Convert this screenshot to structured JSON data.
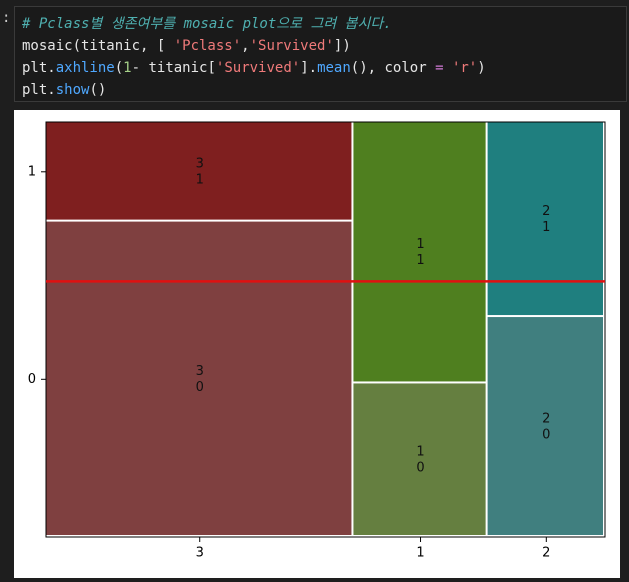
{
  "cell": {
    "prompt": ":",
    "code": [
      [
        {
          "text": "# Pclass별 생존여부를 mosaic plot으로 그려 봅시다.",
          "color": "#4fb0b0",
          "italic": true
        }
      ],
      [
        {
          "text": "mosaic(titanic, [ ",
          "color": "#e6e6e6"
        },
        {
          "text": "'Pclass'",
          "color": "#f07a7a"
        },
        {
          "text": ",",
          "color": "#e6e6e6"
        },
        {
          "text": "'Survived'",
          "color": "#f07a7a"
        },
        {
          "text": "])",
          "color": "#e6e6e6"
        }
      ],
      [
        {
          "text": "plt.",
          "color": "#e6e6e6"
        },
        {
          "text": "axhline",
          "color": "#4fa8ff"
        },
        {
          "text": "(",
          "color": "#e6e6e6"
        },
        {
          "text": "1",
          "color": "#a6d189"
        },
        {
          "text": "- titanic[",
          "color": "#e6e6e6"
        },
        {
          "text": "'Survived'",
          "color": "#f07a7a"
        },
        {
          "text": "].",
          "color": "#e6e6e6"
        },
        {
          "text": "mean",
          "color": "#4fa8ff"
        },
        {
          "text": "(), color ",
          "color": "#e6e6e6"
        },
        {
          "text": "=",
          "color": "#d37ad8"
        },
        {
          "text": " ",
          "color": "#e6e6e6"
        },
        {
          "text": "'r'",
          "color": "#f07a7a"
        },
        {
          "text": ")",
          "color": "#e6e6e6"
        }
      ],
      [
        {
          "text": "plt.",
          "color": "#e6e6e6"
        },
        {
          "text": "show",
          "color": "#4fa8ff"
        },
        {
          "text": "()",
          "color": "#e6e6e6"
        }
      ]
    ]
  },
  "chart_data": {
    "type": "mosaic",
    "categories": [
      "3",
      "1",
      "2"
    ],
    "widths": [
      0.55,
      0.24,
      0.21
    ],
    "series": [
      {
        "name": "0",
        "values": [
          0.76,
          0.37,
          0.53
        ],
        "colors": [
          "#7f4040",
          "#657f40",
          "#407f7f"
        ]
      },
      {
        "name": "1",
        "values": [
          0.24,
          0.63,
          0.47
        ],
        "colors": [
          "#7f1f1f",
          "#4f7f1f",
          "#1f7f7f"
        ]
      }
    ],
    "ylim": [
      0,
      1
    ],
    "hline": {
      "value": 0.616,
      "color": "#e01010"
    }
  }
}
